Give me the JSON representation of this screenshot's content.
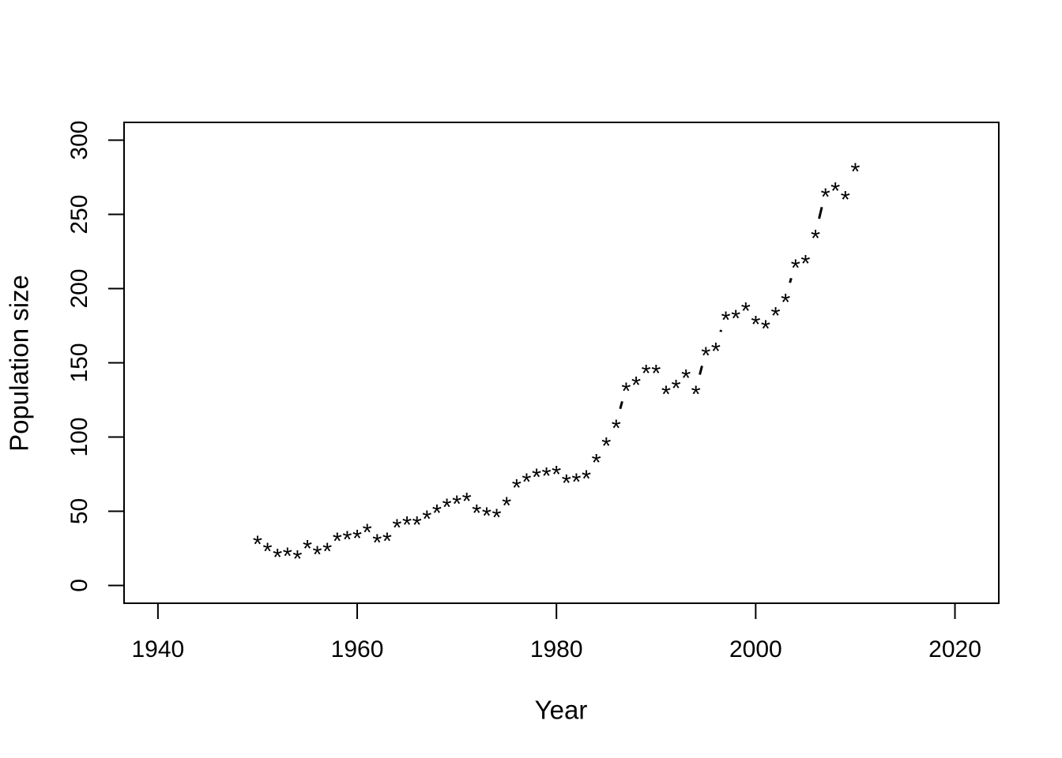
{
  "figure": {
    "background_color": "#ffffff",
    "foreground_color": "#000000"
  },
  "chart_data": {
    "type": "scatter",
    "title": "",
    "xlabel": "Year",
    "ylabel": "Population size",
    "marker": "*",
    "marker_color": "#000000",
    "line_style": "type-b-connectors-visible-only-on-large-jumps",
    "grid": false,
    "legend": "none",
    "x_ticks": [
      1940,
      1960,
      1980,
      2000,
      2020
    ],
    "y_ticks": [
      0,
      50,
      100,
      150,
      200,
      250,
      300
    ],
    "xlim": [
      1936.6,
      2024.4
    ],
    "ylim": [
      -12,
      312
    ],
    "series": [
      {
        "name": "Population size",
        "x": [
          1950,
          1951,
          1952,
          1953,
          1954,
          1955,
          1956,
          1957,
          1958,
          1959,
          1960,
          1961,
          1962,
          1963,
          1964,
          1965,
          1966,
          1967,
          1968,
          1969,
          1970,
          1971,
          1972,
          1973,
          1974,
          1975,
          1976,
          1977,
          1978,
          1979,
          1980,
          1981,
          1982,
          1983,
          1984,
          1985,
          1986,
          1987,
          1988,
          1989,
          1990,
          1991,
          1992,
          1993,
          1994,
          1995,
          1996,
          1997,
          1998,
          1999,
          2000,
          2001,
          2002,
          2003,
          2004,
          2005,
          2006,
          2007,
          2008,
          2009,
          2010
        ],
        "y": [
          31,
          26,
          22,
          23,
          21,
          28,
          24,
          26,
          33,
          34,
          35,
          39,
          32,
          33,
          42,
          44,
          44,
          48,
          52,
          56,
          58,
          60,
          52,
          50,
          49,
          57,
          69,
          73,
          76,
          77,
          78,
          72,
          73,
          75,
          86,
          97,
          109,
          134,
          138,
          146,
          146,
          132,
          136,
          143,
          132,
          158,
          161,
          182,
          183,
          188,
          179,
          176,
          185,
          194,
          217,
          220,
          237,
          265,
          269,
          263,
          282
        ]
      }
    ]
  }
}
